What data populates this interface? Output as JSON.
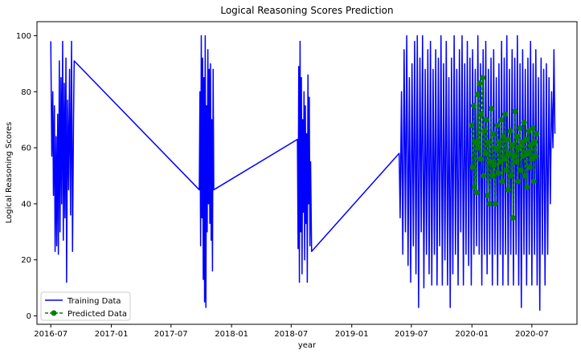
{
  "chart_data": {
    "type": "line",
    "title": "Logical Reasoning Scores Prediction",
    "xlabel": "year",
    "ylabel": "Logical Reasoning Scores",
    "xlim": [
      "2016-05-20",
      "2020-11-15"
    ],
    "ylim": [
      -3,
      105
    ],
    "x_ticks": [
      "2016-07",
      "2017-01",
      "2017-07",
      "2018-01",
      "2018-07",
      "2019-01",
      "2019-07",
      "2020-01",
      "2020-07"
    ],
    "y_ticks": [
      0,
      20,
      40,
      60,
      80,
      100
    ],
    "grid": false,
    "legend_position": "lower-left",
    "colors": {
      "training": "#0000ff",
      "predicted": "#008000"
    },
    "series": [
      {
        "name": "Training Data",
        "style": "solid line",
        "color": "#0000ff",
        "points": [
          [
            "2016-07-01",
            98
          ],
          [
            "2016-07-04",
            57
          ],
          [
            "2016-07-07",
            80
          ],
          [
            "2016-07-09",
            43
          ],
          [
            "2016-07-12",
            75
          ],
          [
            "2016-07-14",
            23
          ],
          [
            "2016-07-17",
            64
          ],
          [
            "2016-07-19",
            25
          ],
          [
            "2016-07-22",
            72
          ],
          [
            "2016-07-24",
            22
          ],
          [
            "2016-07-27",
            91
          ],
          [
            "2016-07-29",
            30
          ],
          [
            "2016-08-01",
            85
          ],
          [
            "2016-08-03",
            40
          ],
          [
            "2016-08-06",
            98
          ],
          [
            "2016-08-08",
            27
          ],
          [
            "2016-08-11",
            83
          ],
          [
            "2016-08-13",
            35
          ],
          [
            "2016-08-16",
            92
          ],
          [
            "2016-08-18",
            12
          ],
          [
            "2016-08-21",
            77
          ],
          [
            "2016-08-24",
            45
          ],
          [
            "2016-08-27",
            88
          ],
          [
            "2016-08-30",
            36
          ],
          [
            "2016-09-02",
            98
          ],
          [
            "2016-09-05",
            23
          ],
          [
            "2016-09-08",
            70
          ],
          [
            "2016-09-10",
            91
          ],
          [
            "2017-09-25",
            45
          ],
          [
            "2017-09-27",
            80
          ],
          [
            "2017-09-29",
            25
          ],
          [
            "2017-10-01",
            100
          ],
          [
            "2017-10-03",
            35
          ],
          [
            "2017-10-05",
            92
          ],
          [
            "2017-10-07",
            13
          ],
          [
            "2017-10-09",
            85
          ],
          [
            "2017-10-11",
            5
          ],
          [
            "2017-10-13",
            100
          ],
          [
            "2017-10-15",
            3
          ],
          [
            "2017-10-17",
            75
          ],
          [
            "2017-10-19",
            30
          ],
          [
            "2017-10-21",
            95
          ],
          [
            "2017-10-23",
            40
          ],
          [
            "2017-10-25",
            88
          ],
          [
            "2017-10-27",
            33
          ],
          [
            "2017-10-29",
            90
          ],
          [
            "2017-10-31",
            27
          ],
          [
            "2017-11-02",
            70
          ],
          [
            "2017-11-04",
            16
          ],
          [
            "2017-11-06",
            88
          ],
          [
            "2017-11-08",
            45
          ],
          [
            "2018-07-20",
            63
          ],
          [
            "2018-07-22",
            24
          ],
          [
            "2018-07-24",
            89
          ],
          [
            "2018-07-26",
            12
          ],
          [
            "2018-07-28",
            98
          ],
          [
            "2018-07-30",
            30
          ],
          [
            "2018-08-01",
            85
          ],
          [
            "2018-08-03",
            15
          ],
          [
            "2018-08-05",
            70
          ],
          [
            "2018-08-07",
            37
          ],
          [
            "2018-08-09",
            80
          ],
          [
            "2018-08-11",
            20
          ],
          [
            "2018-08-13",
            75
          ],
          [
            "2018-08-15",
            33
          ],
          [
            "2018-08-17",
            65
          ],
          [
            "2018-08-19",
            12
          ],
          [
            "2018-08-21",
            86
          ],
          [
            "2018-08-23",
            40
          ],
          [
            "2018-08-25",
            78
          ],
          [
            "2018-08-27",
            25
          ],
          [
            "2018-08-29",
            55
          ],
          [
            "2018-09-01",
            23
          ],
          [
            "2019-05-25",
            58
          ],
          [
            "2019-05-28",
            35
          ],
          [
            "2019-06-01",
            80
          ],
          [
            "2019-06-05",
            22
          ],
          [
            "2019-06-09",
            95
          ],
          [
            "2019-06-13",
            30
          ],
          [
            "2019-06-17",
            100
          ],
          [
            "2019-06-21",
            18
          ],
          [
            "2019-06-25",
            85
          ],
          [
            "2019-06-29",
            12
          ],
          [
            "2019-07-03",
            90
          ],
          [
            "2019-07-07",
            25
          ],
          [
            "2019-07-11",
            98
          ],
          [
            "2019-07-15",
            15
          ],
          [
            "2019-07-19",
            100
          ],
          [
            "2019-07-23",
            3
          ],
          [
            "2019-07-27",
            92
          ],
          [
            "2019-07-31",
            30
          ],
          [
            "2019-08-04",
            100
          ],
          [
            "2019-08-08",
            10
          ],
          [
            "2019-08-12",
            88
          ],
          [
            "2019-08-16",
            22
          ],
          [
            "2019-08-20",
            95
          ],
          [
            "2019-08-24",
            15
          ],
          [
            "2019-08-28",
            98
          ],
          [
            "2019-09-01",
            11
          ],
          [
            "2019-09-05",
            88
          ],
          [
            "2019-09-09",
            22
          ],
          [
            "2019-09-13",
            95
          ],
          [
            "2019-09-17",
            11
          ],
          [
            "2019-09-21",
            92
          ],
          [
            "2019-09-25",
            25
          ],
          [
            "2019-09-29",
            100
          ],
          [
            "2019-10-03",
            11
          ],
          [
            "2019-10-07",
            90
          ],
          [
            "2019-10-11",
            20
          ],
          [
            "2019-10-15",
            98
          ],
          [
            "2019-10-19",
            11
          ],
          [
            "2019-10-23",
            85
          ],
          [
            "2019-10-27",
            3
          ],
          [
            "2019-10-31",
            92
          ],
          [
            "2019-11-04",
            15
          ],
          [
            "2019-11-08",
            100
          ],
          [
            "2019-11-12",
            22
          ],
          [
            "2019-11-16",
            88
          ],
          [
            "2019-11-20",
            11
          ],
          [
            "2019-11-24",
            95
          ],
          [
            "2019-11-28",
            30
          ],
          [
            "2019-12-02",
            100
          ],
          [
            "2019-12-06",
            11
          ],
          [
            "2019-12-10",
            90
          ],
          [
            "2019-12-14",
            22
          ],
          [
            "2019-12-18",
            98
          ],
          [
            "2019-12-22",
            18
          ],
          [
            "2019-12-26",
            92
          ],
          [
            "2019-12-30",
            11
          ],
          [
            "2020-01-03",
            95
          ],
          [
            "2020-01-07",
            22
          ],
          [
            "2020-01-11",
            88
          ],
          [
            "2020-01-15",
            25
          ],
          [
            "2020-01-19",
            100
          ],
          [
            "2020-01-23",
            22
          ],
          [
            "2020-01-27",
            90
          ],
          [
            "2020-01-31",
            11
          ],
          [
            "2020-02-04",
            95
          ],
          [
            "2020-02-08",
            22
          ],
          [
            "2020-02-12",
            98
          ],
          [
            "2020-02-16",
            15
          ],
          [
            "2020-02-20",
            88
          ],
          [
            "2020-02-24",
            22
          ],
          [
            "2020-02-28",
            92
          ],
          [
            "2020-03-03",
            11
          ],
          [
            "2020-03-07",
            95
          ],
          [
            "2020-03-11",
            22
          ],
          [
            "2020-03-15",
            85
          ],
          [
            "2020-03-19",
            11
          ],
          [
            "2020-03-23",
            90
          ],
          [
            "2020-03-27",
            22
          ],
          [
            "2020-03-31",
            98
          ],
          [
            "2020-04-04",
            11
          ],
          [
            "2020-04-08",
            92
          ],
          [
            "2020-04-12",
            22
          ],
          [
            "2020-04-16",
            100
          ],
          [
            "2020-04-20",
            11
          ],
          [
            "2020-04-24",
            88
          ],
          [
            "2020-04-28",
            22
          ],
          [
            "2020-05-02",
            95
          ],
          [
            "2020-05-06",
            11
          ],
          [
            "2020-05-10",
            92
          ],
          [
            "2020-05-14",
            22
          ],
          [
            "2020-05-18",
            100
          ],
          [
            "2020-05-22",
            11
          ],
          [
            "2020-05-26",
            90
          ],
          [
            "2020-05-30",
            3
          ],
          [
            "2020-06-03",
            95
          ],
          [
            "2020-06-07",
            22
          ],
          [
            "2020-06-11",
            88
          ],
          [
            "2020-06-15",
            11
          ],
          [
            "2020-06-19",
            92
          ],
          [
            "2020-06-23",
            22
          ],
          [
            "2020-06-27",
            98
          ],
          [
            "2020-07-01",
            11
          ],
          [
            "2020-07-05",
            90
          ],
          [
            "2020-07-09",
            22
          ],
          [
            "2020-07-13",
            95
          ],
          [
            "2020-07-17",
            11
          ],
          [
            "2020-07-21",
            85
          ],
          [
            "2020-07-25",
            2
          ],
          [
            "2020-07-29",
            92
          ],
          [
            "2020-08-02",
            22
          ],
          [
            "2020-08-06",
            88
          ],
          [
            "2020-08-10",
            11
          ],
          [
            "2020-08-14",
            90
          ],
          [
            "2020-08-18",
            22
          ],
          [
            "2020-08-22",
            85
          ],
          [
            "2020-08-26",
            40
          ],
          [
            "2020-08-30",
            80
          ],
          [
            "2020-09-03",
            60
          ],
          [
            "2020-09-06",
            95
          ],
          [
            "2020-09-09",
            65
          ]
        ]
      },
      {
        "name": "Predicted Data",
        "style": "dashed line with circle markers",
        "color": "#008000",
        "points": [
          [
            "2019-12-31",
            68
          ],
          [
            "2020-01-03",
            53
          ],
          [
            "2020-01-06",
            75
          ],
          [
            "2020-01-09",
            46
          ],
          [
            "2020-01-12",
            62
          ],
          [
            "2020-01-15",
            44
          ],
          [
            "2020-01-18",
            79
          ],
          [
            "2020-01-21",
            60
          ],
          [
            "2020-01-24",
            83
          ],
          [
            "2020-01-27",
            56
          ],
          [
            "2020-01-30",
            72
          ],
          [
            "2020-02-02",
            85
          ],
          [
            "2020-02-05",
            50
          ],
          [
            "2020-02-08",
            66
          ],
          [
            "2020-02-11",
            58
          ],
          [
            "2020-02-14",
            70
          ],
          [
            "2020-02-17",
            43
          ],
          [
            "2020-02-20",
            62
          ],
          [
            "2020-02-23",
            40
          ],
          [
            "2020-02-26",
            55
          ],
          [
            "2020-02-29",
            74
          ],
          [
            "2020-03-03",
            50
          ],
          [
            "2020-03-06",
            65
          ],
          [
            "2020-03-09",
            54
          ],
          [
            "2020-03-12",
            40
          ],
          [
            "2020-03-15",
            60
          ],
          [
            "2020-03-18",
            68
          ],
          [
            "2020-03-21",
            51
          ],
          [
            "2020-03-24",
            62
          ],
          [
            "2020-03-27",
            55
          ],
          [
            "2020-03-30",
            70
          ],
          [
            "2020-04-02",
            48
          ],
          [
            "2020-04-05",
            64
          ],
          [
            "2020-04-08",
            56
          ],
          [
            "2020-04-11",
            72
          ],
          [
            "2020-04-14",
            52
          ],
          [
            "2020-04-17",
            63
          ],
          [
            "2020-04-20",
            45
          ],
          [
            "2020-04-23",
            58
          ],
          [
            "2020-04-26",
            66
          ],
          [
            "2020-04-29",
            50
          ],
          [
            "2020-05-02",
            61
          ],
          [
            "2020-05-05",
            35
          ],
          [
            "2020-05-08",
            57
          ],
          [
            "2020-05-11",
            73
          ],
          [
            "2020-05-14",
            55
          ],
          [
            "2020-05-17",
            64
          ],
          [
            "2020-05-20",
            48
          ],
          [
            "2020-05-23",
            60
          ],
          [
            "2020-05-26",
            67
          ],
          [
            "2020-05-29",
            52
          ],
          [
            "2020-06-01",
            62
          ],
          [
            "2020-06-04",
            57
          ],
          [
            "2020-06-07",
            69
          ],
          [
            "2020-06-10",
            50
          ],
          [
            "2020-06-13",
            63
          ],
          [
            "2020-06-16",
            46
          ],
          [
            "2020-06-19",
            58
          ],
          [
            "2020-06-22",
            66
          ],
          [
            "2020-06-25",
            53
          ],
          [
            "2020-06-28",
            61
          ],
          [
            "2020-07-01",
            56
          ],
          [
            "2020-07-04",
            67
          ],
          [
            "2020-07-07",
            48
          ],
          [
            "2020-07-10",
            62
          ],
          [
            "2020-07-13",
            57
          ],
          [
            "2020-07-16",
            65
          ]
        ]
      }
    ]
  }
}
